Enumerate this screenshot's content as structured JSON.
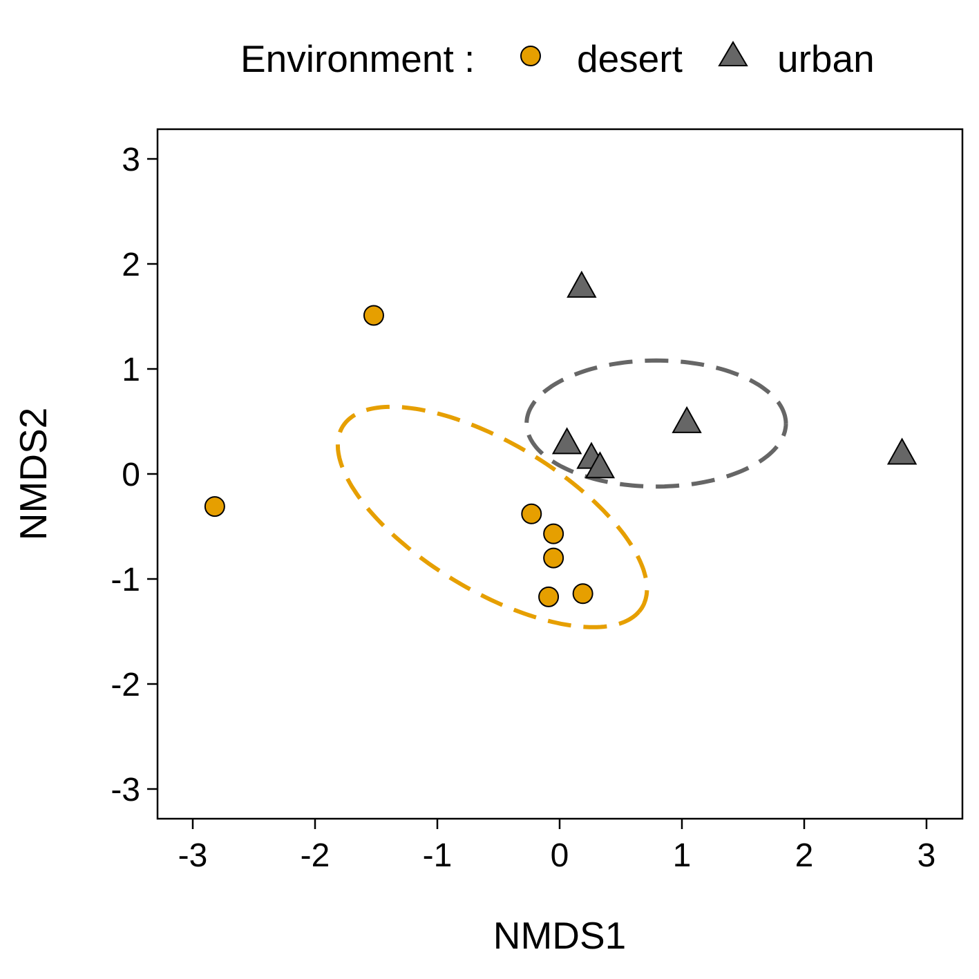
{
  "colors": {
    "desert": "#E69F00",
    "urban": "#666666",
    "marker_outline": "#000000",
    "frame": "#000000",
    "background": "#FFFFFF"
  },
  "legend": {
    "title": "Environment :",
    "position": "top",
    "items": [
      {
        "label": "desert",
        "shape": "circle",
        "color_key": "desert"
      },
      {
        "label": "urban",
        "shape": "triangle",
        "color_key": "urban"
      }
    ]
  },
  "chart_data": {
    "type": "scatter",
    "title": "",
    "xlabel": "NMDS1",
    "ylabel": "NMDS2",
    "xlim": [
      -3.3,
      3.3
    ],
    "ylim": [
      -3.3,
      3.3
    ],
    "xticks": [
      -3,
      -2,
      -1,
      0,
      1,
      2,
      3
    ],
    "yticks": [
      -3,
      -2,
      -1,
      0,
      1,
      2,
      3
    ],
    "xtick_labels": [
      "-3",
      "-2",
      "-1",
      "0",
      "1",
      "2",
      "3"
    ],
    "ytick_labels": [
      "-3",
      "-2",
      "-1",
      "0",
      "1",
      "2",
      "3"
    ],
    "grid": false,
    "series": [
      {
        "name": "desert",
        "marker": "circle",
        "points": [
          {
            "x": -1.52,
            "y": 1.51
          },
          {
            "x": -2.82,
            "y": -0.31
          },
          {
            "x": -0.23,
            "y": -0.38
          },
          {
            "x": -0.05,
            "y": -0.57
          },
          {
            "x": -0.05,
            "y": -0.8
          },
          {
            "x": -0.09,
            "y": -1.17
          },
          {
            "x": 0.19,
            "y": -1.14
          }
        ],
        "ellipse": {
          "cx": -0.55,
          "cy": -0.41,
          "rx": 1.5,
          "ry": 0.67,
          "angle_deg": -37,
          "style": "dashed"
        }
      },
      {
        "name": "urban",
        "marker": "triangle",
        "points": [
          {
            "x": 0.18,
            "y": 1.78
          },
          {
            "x": 1.04,
            "y": 0.49
          },
          {
            "x": 2.8,
            "y": 0.19
          },
          {
            "x": 0.06,
            "y": 0.29
          },
          {
            "x": 0.26,
            "y": 0.15
          },
          {
            "x": 0.33,
            "y": 0.06
          }
        ],
        "ellipse": {
          "cx": 0.79,
          "cy": 0.48,
          "rx": 1.06,
          "ry": 0.6,
          "angle_deg": 0,
          "style": "dashed"
        }
      }
    ]
  }
}
